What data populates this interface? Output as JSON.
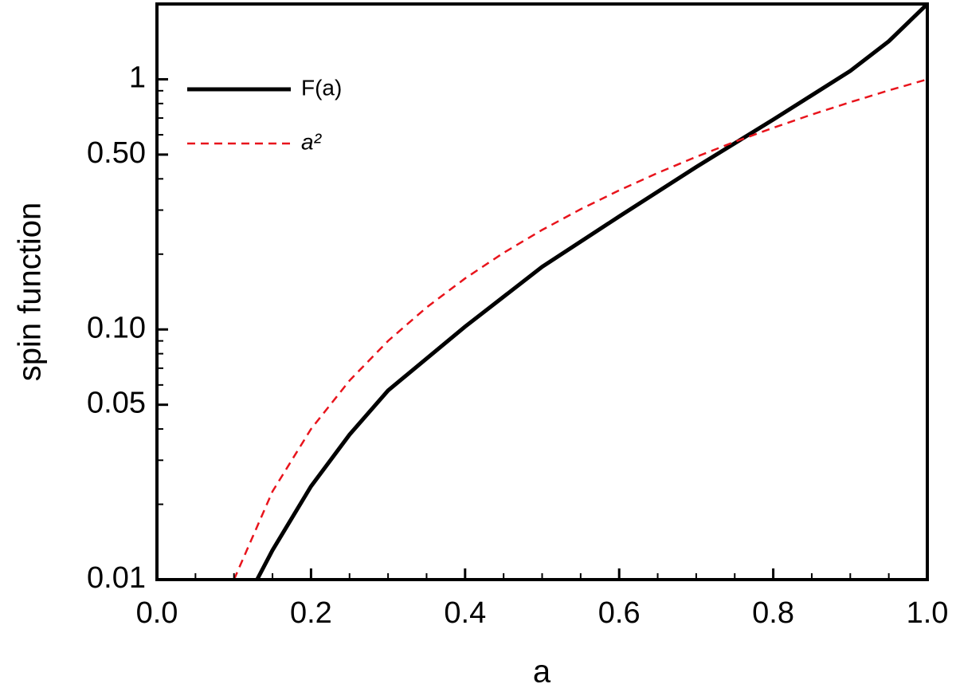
{
  "chart_data": {
    "type": "line",
    "x_label": "a",
    "y_label": "spin function",
    "log_y": true,
    "legend": "upper left",
    "xlim": [
      0,
      1
    ],
    "ylim": [
      0.01,
      2
    ],
    "xticks": [
      {
        "value": 0,
        "label": "0.0"
      },
      0.2,
      0.4,
      0.6,
      0.8,
      {
        "value": 1,
        "label": "1.0"
      }
    ],
    "xticks_minor": [
      0.05,
      0.1,
      0.15,
      0.25,
      0.3,
      0.35,
      0.45,
      0.5,
      0.55,
      0.65,
      0.7,
      0.75,
      0.85,
      0.9,
      0.95
    ],
    "yticks": [
      0.01,
      0.05,
      {
        "value": 0.1,
        "label": "0.10"
      },
      {
        "value": 0.5,
        "label": "0.50"
      },
      1
    ],
    "yticks_minor": [
      0.02,
      0.03,
      0.04,
      0.06,
      0.07,
      0.08,
      0.09,
      0.2,
      0.3,
      0.4,
      0.6,
      0.7,
      0.8,
      0.9,
      2
    ],
    "series": [
      {
        "name": "F(a)",
        "color": "#000000",
        "dash": "solid",
        "x": [
          0.13,
          0.15,
          0.2,
          0.25,
          0.3,
          0.4,
          0.5,
          0.6,
          0.7,
          0.8,
          0.9,
          0.95,
          1
        ],
        "values": [
          0.01,
          0.0131,
          0.0236,
          0.038,
          0.057,
          0.1026,
          0.178,
          0.283,
          0.446,
          0.69,
          1.08,
          1.42,
          2
        ]
      },
      {
        "name": "a²",
        "color": "#e8141c",
        "dash": "dashed",
        "x": [
          0.1,
          0.15,
          0.2,
          0.25,
          0.3,
          0.35,
          0.4,
          0.45,
          0.5,
          0.55,
          0.6,
          0.65,
          0.7,
          0.75,
          0.8,
          0.85,
          0.9,
          0.95,
          1
        ],
        "values": [
          0.01,
          0.0225,
          0.04,
          0.0625,
          0.09,
          0.1225,
          0.16,
          0.2025,
          0.25,
          0.3025,
          0.36,
          0.4225,
          0.49,
          0.5625,
          0.64,
          0.7225,
          0.81,
          0.9025,
          1
        ]
      }
    ]
  }
}
